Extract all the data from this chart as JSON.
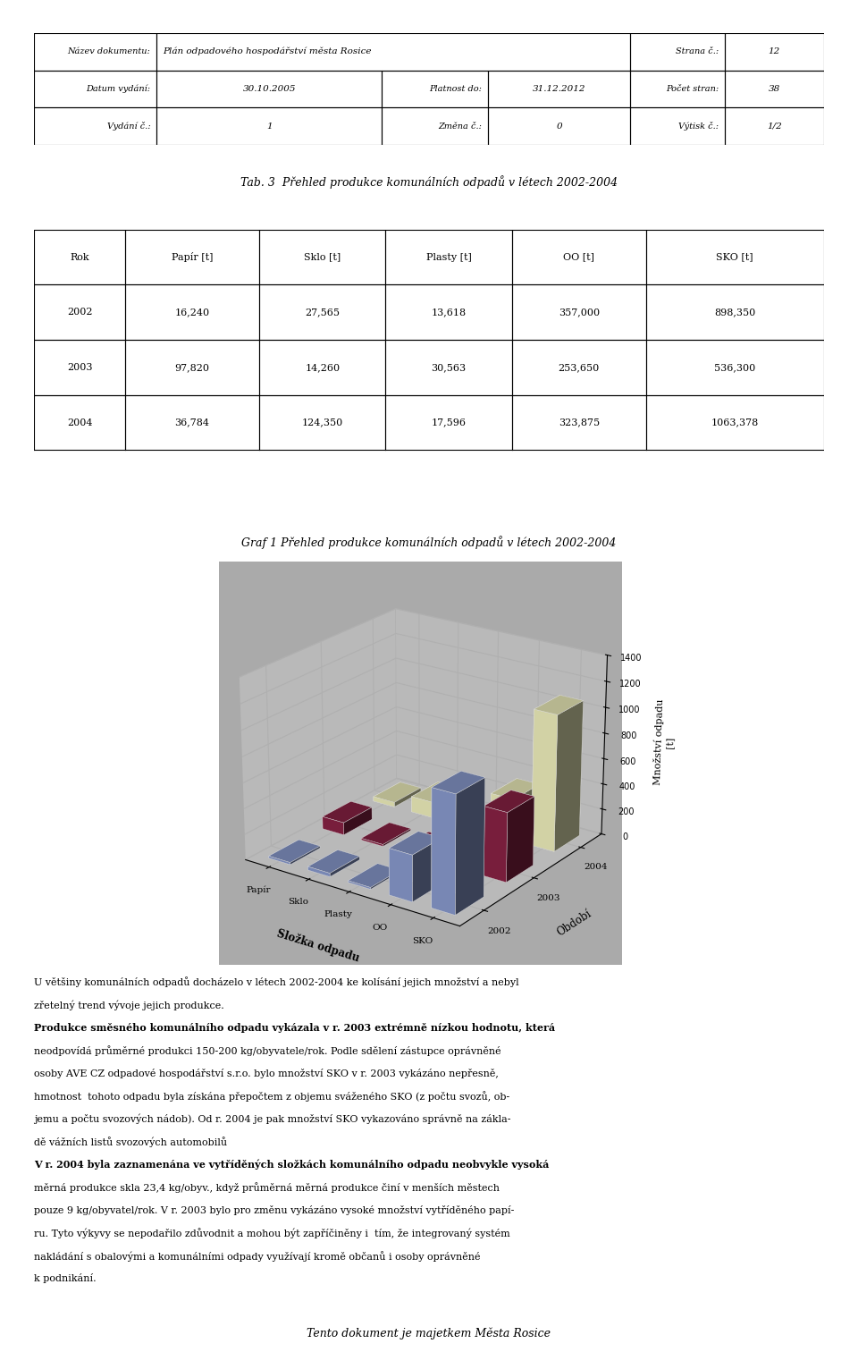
{
  "header_rows": [
    [
      [
        "Název dokumentu:",
        0.15
      ],
      [
        "Plán odpadového hospodářství města Rosice",
        0.43
      ],
      [
        "Strana č.:",
        0.12
      ],
      [
        "12",
        0.3
      ]
    ],
    [
      [
        "Datum vydání:",
        0.15
      ],
      [
        "30.10.2005",
        0.14
      ],
      [
        "Platnost do:",
        0.14
      ],
      [
        "31.12.2012",
        0.16
      ],
      [
        "Počet stran:",
        0.12
      ],
      [
        "38",
        0.29
      ]
    ],
    [
      [
        "Vydání č.:",
        0.15
      ],
      [
        "1",
        0.14
      ],
      [
        "Změna č.:",
        0.14
      ],
      [
        "0",
        0.16
      ],
      [
        "Výtisk č.:",
        0.12
      ],
      [
        "1/2",
        0.29
      ]
    ]
  ],
  "table_title": "Tab. 3  Přehled produkce komunálních odpadů v létech 2002-2004",
  "data_table_headers": [
    "Rok",
    "Papír [t]",
    "Sklo [t]",
    "Plasty [t]",
    "OO [t]",
    "SKO [t]"
  ],
  "data_table_rows": [
    [
      "2002",
      "16,240",
      "27,565",
      "13,618",
      "357,000",
      "898,350"
    ],
    [
      "2003",
      "97,820",
      "14,260",
      "30,563",
      "253,650",
      "536,300"
    ],
    [
      "2004",
      "36,784",
      "124,350",
      "17,596",
      "323,875",
      "1063,378"
    ]
  ],
  "chart_title": "Graf 1 Přehled produkce komunálních odpadů v létech 2002-2004",
  "categories": [
    "Papír",
    "Sklo",
    "Plasty",
    "OO",
    "SKO"
  ],
  "xlabel": "Složka odpadu",
  "ylabel": "Množství odpadu\n[t]",
  "years": [
    "2002",
    "2003",
    "2004"
  ],
  "legend_title": "Období",
  "values": {
    "2002": [
      16.24,
      27.565,
      13.618,
      357.0,
      898.35
    ],
    "2003": [
      97.82,
      14.26,
      30.563,
      253.65,
      536.3
    ],
    "2004": [
      36.784,
      124.35,
      17.596,
      323.875,
      1063.378
    ]
  },
  "bar_colors": {
    "2002": "#8899CC",
    "2003": "#882244",
    "2004": "#EEEEBB"
  },
  "ylim": [
    0,
    1400
  ],
  "yticks": [
    0,
    200,
    400,
    600,
    800,
    1000,
    1200,
    1400
  ],
  "wall_color": "#C8C8C8",
  "floor_color": "#AAAAAA",
  "body_text_para1": [
    "U většiny komunálních odpadů docházelo v létech 2002-2004 ke kolísání jejich množství a nebyl",
    "zřetelný trend vývoje jejich produkce."
  ],
  "body_text_para2": [
    "Produkce směsného komunálního odpadu vykázala v r. 2003 extrémně nízkou hodnotu, která",
    "neodpovídá průměrné produkci 150-200 kg/obyvatele/rok. Podle sdělení zástupce oprávněné",
    "osoby AVE CZ odpadové hospodářství s.r.o. bylo množství SKO v r. 2003 vykázáno nepřesně,",
    "hmotnost  tohoto odpadu byla získána přepočtem z objemu sváženého SKO (z počtu svozů, ob-",
    "jemu a počtu svozových nádob). Od r. 2004 je pak množství SKO vykazováno správně na zákla-",
    "dě vážních listů svozových automobilů"
  ],
  "body_text_para3": [
    "V r. 2004 byla zaznamenána ve vytříděných složkách komunálního odpadu neobvykle vysoká",
    "měrná produkce skla 23,4 kg/obyv., když průměrná měrná produkce činí v menších městech",
    "pouze 9 kg/obyvatel/rok. V r. 2003 bylo pro změnu vykázáno vysoké množství vytříděného papí-",
    "ru. Tyto výkyvy se nepodařilo zdůvodnit a mohou být zapříčiněny i  tím, že integrovaný systém",
    "nakládání s obalovými a komunálními odpady využívají kromě občanů i osoby oprávněné",
    "k podnikání."
  ],
  "footer_text": "Tento dokument je majetkem Města Rosice",
  "page_bg": "#FFFFFF",
  "view_elev": 22,
  "view_azim": -55
}
